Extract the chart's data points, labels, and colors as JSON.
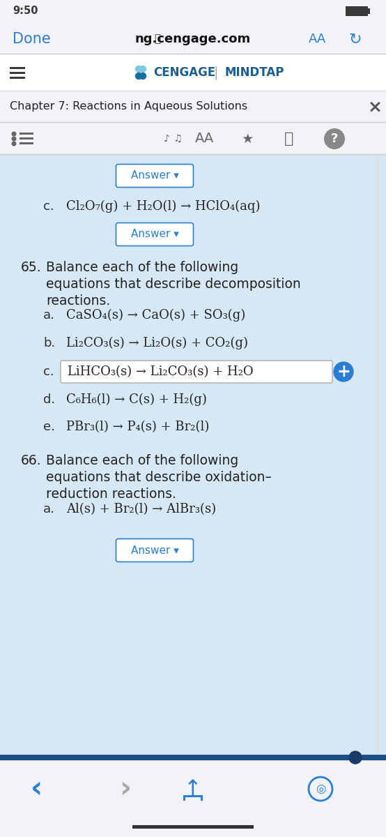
{
  "time": "9:50",
  "url": "ng.cengage.com",
  "chapter": "Chapter 7: Reactions in Aqueous Solutions",
  "bg_gray": "#f2f2f7",
  "bg_white": "#ffffff",
  "bg_blue_light": "#d6e8f5",
  "blue": "#2a7fd4",
  "dark": "#222222",
  "mid": "#555555",
  "line_sep": "#cccccc",
  "answer_btn_text": "Answer ▾",
  "eq_c": "Cl₂O₇(g) + H₂O(l) → HClO₄(aq)",
  "q65_l1": "Balance each of the following",
  "q65_l2": "equations that describe decomposition",
  "q65_l3": "reactions.",
  "q65a": "CaSO₄(s) → CaO(s) + SO₃(g)",
  "q65b": "Li₂CO₃(s) → Li₂O(s) + CO₂(g)",
  "q65c": "LiHCO₃(s) → Li₂CO₃(s) + H₂O",
  "q65d": "C₆H₆(l) → C(s) + H₂(g)",
  "q65e": "PBr₃(l) → P₄(s) + Br₂(l)",
  "q66_l1": "Balance each of the following",
  "q66_l2": "equations that describe oxidation–",
  "q66_l3": "reduction reactions.",
  "q66a": "Al(s) + Br₂(l) → AlBr₃(s)",
  "scroll_bar_color": "#1a4f8a",
  "scroll_knob_color": "#1a4f8a"
}
